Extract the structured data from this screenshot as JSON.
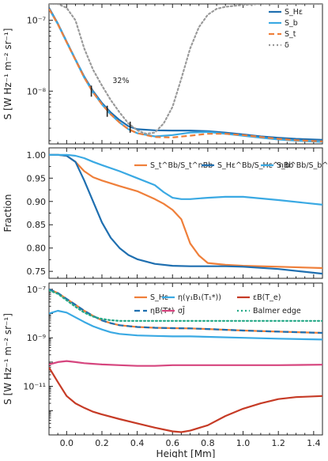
{
  "chart_data": [
    {
      "type": "line",
      "ylabel": "S [W Hz⁻¹ m⁻² sr⁻¹]",
      "yscale": "log",
      "xlim": [
        -0.1,
        1.45
      ],
      "ylim": [
        1.8e-09,
        1.7e-07
      ],
      "yticks": [
        1e-08,
        1e-07
      ],
      "yticklabels": [
        "10⁻⁸",
        "10⁻⁷"
      ],
      "annotation": "32%",
      "series": [
        {
          "name": "S_Hε",
          "color": "#1f6fb0",
          "style": "solid",
          "x": [
            -0.1,
            -0.05,
            0.0,
            0.05,
            0.1,
            0.15,
            0.2,
            0.25,
            0.3,
            0.35,
            0.4,
            0.5,
            0.6,
            0.7,
            0.8,
            0.9,
            1.0,
            1.1,
            1.2,
            1.3,
            1.45
          ],
          "y": [
            1.5e-07,
            9e-08,
            5e-08,
            2.8e-08,
            1.6e-08,
            1e-08,
            6.8e-09,
            5e-09,
            3.9e-09,
            3.2e-09,
            2.9e-09,
            2.8e-09,
            2.78e-09,
            2.78e-09,
            2.72e-09,
            2.6e-09,
            2.45e-09,
            2.3e-09,
            2.2e-09,
            2.12e-09,
            2.05e-09
          ]
        },
        {
          "name": "S_b",
          "color": "#3aa9e3",
          "style": "solid",
          "x": [
            -0.1,
            -0.05,
            0.0,
            0.05,
            0.1,
            0.15,
            0.2,
            0.25,
            0.3,
            0.35,
            0.4,
            0.5,
            0.6,
            0.7,
            0.8,
            0.9,
            1.0,
            1.1,
            1.2,
            1.3,
            1.45
          ],
          "y": [
            1.45e-07,
            8.8e-08,
            4.9e-08,
            2.75e-08,
            1.55e-08,
            9.6e-09,
            6.5e-09,
            4.7e-09,
            3.6e-09,
            2.9e-09,
            2.55e-09,
            2.3e-09,
            2.4e-09,
            2.6e-09,
            2.65e-09,
            2.5e-09,
            2.35e-09,
            2.2e-09,
            2.08e-09,
            2e-09,
            1.92e-09
          ]
        },
        {
          "name": "S_t",
          "color": "#ef7f3a",
          "style": "dashed",
          "x": [
            -0.1,
            -0.05,
            0.0,
            0.05,
            0.1,
            0.15,
            0.2,
            0.25,
            0.3,
            0.35,
            0.4,
            0.5,
            0.6,
            0.7,
            0.8,
            0.9,
            1.0,
            1.1,
            1.2,
            1.3,
            1.45
          ],
          "y": [
            1.45e-07,
            8.8e-08,
            4.9e-08,
            2.75e-08,
            1.55e-08,
            9.6e-09,
            6.5e-09,
            4.7e-09,
            3.6e-09,
            2.9e-09,
            2.55e-09,
            2.25e-09,
            2.22e-09,
            2.35e-09,
            2.5e-09,
            2.5e-09,
            2.4e-09,
            2.25e-09,
            2.12e-09,
            2.03e-09,
            1.95e-09
          ]
        },
        {
          "name": "δ",
          "color": "#9a9a9a",
          "style": "dotted",
          "x": [
            -0.1,
            -0.05,
            0.0,
            0.05,
            0.1,
            0.15,
            0.2,
            0.25,
            0.3,
            0.35,
            0.4,
            0.45,
            0.5,
            0.55,
            0.6,
            0.65,
            0.7,
            0.75,
            0.8,
            0.85,
            0.9,
            1.0,
            1.1,
            1.2,
            1.3,
            1.45
          ],
          "y": [
            1.7e-07,
            1.7e-07,
            1.5e-07,
            1e-07,
            4e-08,
            2e-08,
            1.2e-08,
            7.5e-09,
            5e-09,
            3.5e-09,
            2.8e-09,
            2.5e-09,
            2.6e-09,
            3.5e-09,
            6e-09,
            1.5e-08,
            4e-08,
            8e-08,
            1.2e-07,
            1.45e-07,
            1.55e-07,
            1.65e-07,
            1.7e-07,
            1.7e-07,
            1.7e-07,
            1.7e-07
          ]
        }
      ],
      "markers": [
        {
          "x": 0.14,
          "y": 1e-08
        },
        {
          "x": 0.23,
          "y": 5.2e-09
        },
        {
          "x": 0.36,
          "y": 3.1e-09
        }
      ]
    },
    {
      "type": "line",
      "ylabel": "Fraction",
      "xlim": [
        -0.1,
        1.45
      ],
      "ylim": [
        0.735,
        1.015
      ],
      "yticks": [
        0.75,
        0.8,
        0.85,
        0.9,
        0.95,
        1.0
      ],
      "yticklabels": [
        "0.75",
        "0.80",
        "0.85",
        "0.90",
        "0.95",
        "1.00"
      ],
      "series": [
        {
          "name": "S_t^Bb/S_t^nBb",
          "color": "#ef7f3a",
          "x": [
            -0.1,
            -0.05,
            0.0,
            0.05,
            0.1,
            0.15,
            0.2,
            0.3,
            0.4,
            0.5,
            0.55,
            0.6,
            0.65,
            0.7,
            0.75,
            0.8,
            0.9,
            1.0,
            1.2,
            1.45
          ],
          "y": [
            1.0,
            1.0,
            0.998,
            0.985,
            0.965,
            0.952,
            0.945,
            0.933,
            0.922,
            0.905,
            0.895,
            0.882,
            0.862,
            0.81,
            0.784,
            0.768,
            0.764,
            0.762,
            0.76,
            0.757
          ]
        },
        {
          "name": "S_Hε^Bb/S_Hε^nBb",
          "color": "#1f6fb0",
          "x": [
            -0.1,
            -0.05,
            0.0,
            0.05,
            0.1,
            0.15,
            0.2,
            0.25,
            0.3,
            0.35,
            0.4,
            0.5,
            0.6,
            0.7,
            0.8,
            0.9,
            1.0,
            1.2,
            1.45
          ],
          "y": [
            1.0,
            1.0,
            0.998,
            0.985,
            0.945,
            0.9,
            0.855,
            0.822,
            0.8,
            0.785,
            0.776,
            0.766,
            0.762,
            0.761,
            0.761,
            0.761,
            0.76,
            0.755,
            0.745
          ]
        },
        {
          "name": "S_b^Bb/S_b^nBb",
          "color": "#3aa9e3",
          "x": [
            -0.1,
            -0.05,
            0.0,
            0.05,
            0.1,
            0.15,
            0.2,
            0.3,
            0.4,
            0.5,
            0.55,
            0.6,
            0.65,
            0.7,
            0.8,
            0.9,
            1.0,
            1.2,
            1.45
          ],
          "y": [
            1.0,
            1.0,
            1.0,
            0.998,
            0.993,
            0.985,
            0.978,
            0.965,
            0.95,
            0.935,
            0.92,
            0.908,
            0.905,
            0.905,
            0.908,
            0.91,
            0.91,
            0.903,
            0.893
          ]
        }
      ]
    },
    {
      "type": "line",
      "ylabel": "S [W Hz⁻¹ m⁻² sr⁻¹]",
      "xlabel": "Height [Mm]",
      "yscale": "log",
      "xlim": [
        -0.1,
        1.45
      ],
      "ylim": [
        1e-13,
        1.8e-07
      ],
      "yticks": [
        1e-11,
        1e-09,
        1e-07
      ],
      "yticklabels": [
        "10⁻¹¹",
        "10⁻⁹",
        "10⁻⁷"
      ],
      "xticks": [
        0.0,
        0.2,
        0.4,
        0.6,
        0.8,
        1.0,
        1.2,
        1.4
      ],
      "xticklabels": [
        "0.0",
        "0.2",
        "0.4",
        "0.6",
        "0.8",
        "1.0",
        "1.2",
        "1.4"
      ],
      "series": [
        {
          "name": "S_Hε",
          "color": "#ef7f3a",
          "style": "solid",
          "x": [
            -0.1,
            -0.05,
            0.0,
            0.05,
            0.1,
            0.15,
            0.2,
            0.25,
            0.3,
            0.4,
            0.5,
            0.6,
            0.7,
            0.8,
            1.0,
            1.2,
            1.45
          ],
          "y": [
            1e-07,
            7e-08,
            4e-08,
            2.3e-08,
            1.3e-08,
            8e-09,
            5.2e-09,
            4e-09,
            3.3e-09,
            2.8e-09,
            2.6e-09,
            2.5e-09,
            2.45e-09,
            2.3e-09,
            2e-09,
            1.8e-09,
            1.6e-09
          ]
        },
        {
          "name": "ηB(T*)",
          "color": "#1f6fb0",
          "style": "dashed",
          "x": [
            -0.1,
            -0.05,
            0.0,
            0.05,
            0.1,
            0.15,
            0.2,
            0.25,
            0.3,
            0.4,
            0.5,
            0.6,
            0.7,
            0.8,
            1.0,
            1.2,
            1.45
          ],
          "y": [
            1e-07,
            7e-08,
            4e-08,
            2.3e-08,
            1.3e-08,
            8e-09,
            5.2e-09,
            4e-09,
            3.3e-09,
            2.8e-09,
            2.6e-09,
            2.5e-09,
            2.45e-09,
            2.3e-09,
            2e-09,
            1.8e-09,
            1.6e-09
          ]
        },
        {
          "name": "η(γ₁B₁(T₁*))",
          "color": "#3aa9e3",
          "style": "solid",
          "x": [
            -0.1,
            -0.05,
            0.0,
            0.05,
            0.1,
            0.15,
            0.2,
            0.25,
            0.3,
            0.4,
            0.5,
            0.6,
            0.7,
            0.8,
            1.0,
            1.2,
            1.45
          ],
          "y": [
            1e-08,
            1.3e-08,
            1.1e-08,
            7e-09,
            4.5e-09,
            3e-09,
            2.2e-09,
            1.7e-09,
            1.45e-09,
            1.25e-09,
            1.2e-09,
            1.15e-09,
            1.15e-09,
            1.1e-09,
            1e-09,
            9.2e-10,
            8.5e-10
          ]
        },
        {
          "name": "σJ̄",
          "color": "#d6457e",
          "style": "solid",
          "x": [
            -0.1,
            -0.05,
            0.0,
            0.05,
            0.1,
            0.15,
            0.2,
            0.3,
            0.4,
            0.5,
            0.6,
            0.7,
            0.8,
            1.0,
            1.2,
            1.45
          ],
          "y": [
            8e-11,
            1e-10,
            1.1e-10,
            1e-10,
            9e-11,
            8.5e-11,
            8e-11,
            7.5e-11,
            7e-11,
            7e-11,
            7.5e-11,
            7.5e-11,
            7.5e-11,
            7.5e-11,
            7.5e-11,
            7.8e-11
          ]
        },
        {
          "name": "εB(T_e)",
          "color": "#c63b26",
          "style": "solid",
          "x": [
            -0.1,
            -0.05,
            0.0,
            0.05,
            0.1,
            0.15,
            0.2,
            0.3,
            0.4,
            0.5,
            0.6,
            0.65,
            0.7,
            0.8,
            0.9,
            1.0,
            1.1,
            1.2,
            1.3,
            1.45
          ],
          "y": [
            6e-11,
            1.5e-11,
            4e-12,
            2e-12,
            1.3e-12,
            9e-13,
            7e-13,
            4.5e-13,
            3e-13,
            2e-13,
            1.4e-13,
            1.3e-13,
            1.5e-13,
            2.5e-13,
            6e-13,
            1.2e-12,
            2e-12,
            3e-12,
            3.6e-12,
            4e-12
          ]
        },
        {
          "name": "Balmer edge",
          "color": "#23a886",
          "style": "dotted",
          "x": [
            -0.1,
            -0.05,
            0.0,
            0.05,
            0.1,
            0.15,
            0.2,
            0.25,
            0.3,
            0.4,
            0.6,
            0.8,
            1.0,
            1.2,
            1.45
          ],
          "y": [
            9e-08,
            6.5e-08,
            3.5e-08,
            1.9e-08,
            1.1e-08,
            7.5e-09,
            6e-09,
            5.3e-09,
            5e-09,
            5e-09,
            5e-09,
            5e-09,
            5e-09,
            5e-09,
            5e-09
          ]
        }
      ]
    }
  ]
}
